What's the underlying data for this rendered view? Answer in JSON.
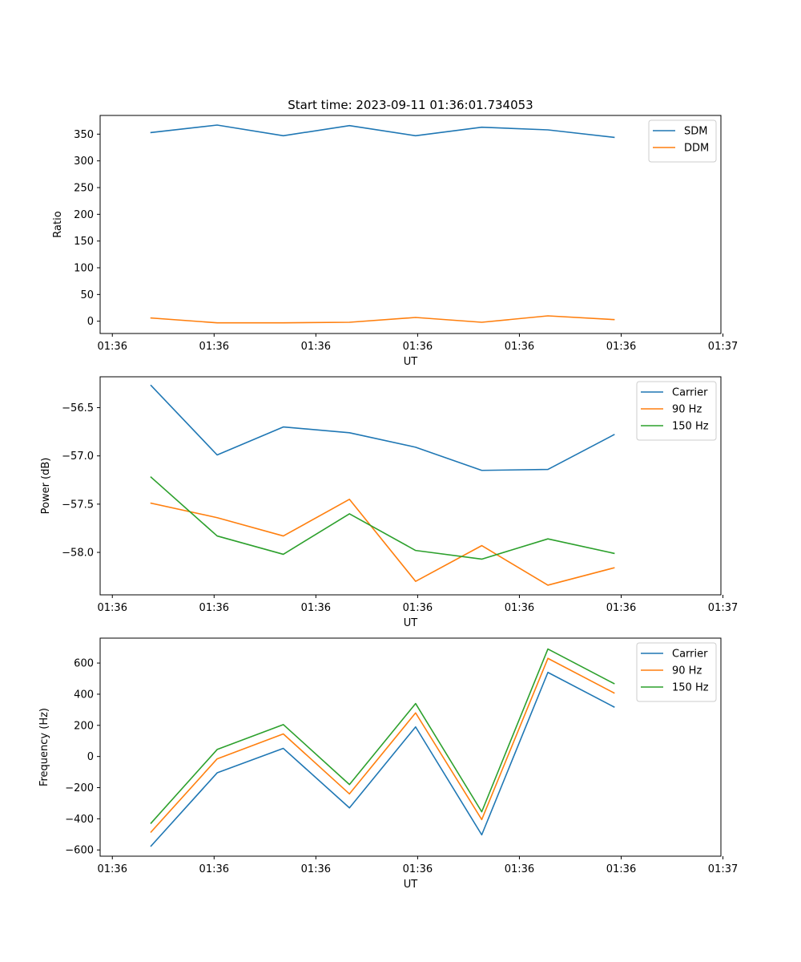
{
  "figure_title": "Start time: 2023-09-11 01:36:01.734053",
  "colors": {
    "blue": "#1f77b4",
    "orange": "#ff7f0e",
    "green": "#2ca02c"
  },
  "chart_data": [
    {
      "type": "line",
      "title": "Start time: 2023-09-11 01:36:01.734053",
      "xlabel": "UT",
      "ylabel": "Ratio",
      "xlim": [
        -0.12,
        5.98
      ],
      "x": [
        0.38,
        1.03,
        1.68,
        2.33,
        2.98,
        3.63,
        4.28,
        4.93
      ],
      "xticks": [
        0,
        1,
        2,
        3,
        4,
        5,
        6
      ],
      "xtick_labels": [
        "01:36",
        "01:36",
        "01:36",
        "01:36",
        "01:36",
        "01:36",
        "01:37"
      ],
      "ylim": [
        -23,
        385
      ],
      "yticks": [
        0,
        50,
        100,
        150,
        200,
        250,
        300,
        350
      ],
      "ytick_labels": [
        "0",
        "50",
        "100",
        "150",
        "200",
        "250",
        "300",
        "350"
      ],
      "legend_position": "top-right",
      "series": [
        {
          "name": "SDM",
          "color": "#1f77b4",
          "values": [
            353,
            367,
            347,
            366,
            347,
            363,
            358,
            344
          ]
        },
        {
          "name": "DDM",
          "color": "#ff7f0e",
          "values": [
            6,
            -3,
            -3,
            -2,
            7,
            -2,
            10,
            3
          ]
        }
      ]
    },
    {
      "type": "line",
      "title": "",
      "xlabel": "UT",
      "ylabel": "Power (dB)",
      "xlim": [
        -0.12,
        5.98
      ],
      "x": [
        0.38,
        1.03,
        1.68,
        2.33,
        2.98,
        3.63,
        4.28,
        4.93
      ],
      "xticks": [
        0,
        1,
        2,
        3,
        4,
        5,
        6
      ],
      "xtick_labels": [
        "01:36",
        "01:36",
        "01:36",
        "01:36",
        "01:36",
        "01:36",
        "01:37"
      ],
      "ylim": [
        -58.44,
        -56.18
      ],
      "yticks": [
        -58.0,
        -57.5,
        -57.0,
        -56.5
      ],
      "ytick_labels": [
        "−58.0",
        "−57.5",
        "−57.0",
        "−56.5"
      ],
      "legend_position": "top-right",
      "series": [
        {
          "name": "Carrier",
          "color": "#1f77b4",
          "values": [
            -56.27,
            -56.99,
            -56.7,
            -56.76,
            -56.91,
            -57.15,
            -57.14,
            -56.78
          ]
        },
        {
          "name": "90 Hz",
          "color": "#ff7f0e",
          "values": [
            -57.49,
            -57.64,
            -57.83,
            -57.45,
            -58.3,
            -57.93,
            -58.34,
            -58.16
          ]
        },
        {
          "name": "150 Hz",
          "color": "#2ca02c",
          "values": [
            -57.22,
            -57.83,
            -58.02,
            -57.6,
            -57.98,
            -58.07,
            -57.86,
            -58.01
          ]
        }
      ]
    },
    {
      "type": "line",
      "title": "",
      "xlabel": "UT",
      "ylabel": "Frequency (Hz)",
      "xlim": [
        -0.12,
        5.98
      ],
      "x": [
        0.38,
        1.03,
        1.68,
        2.33,
        2.98,
        3.63,
        4.28,
        4.93
      ],
      "xticks": [
        0,
        1,
        2,
        3,
        4,
        5,
        6
      ],
      "xtick_labels": [
        "01:36",
        "01:36",
        "01:36",
        "01:36",
        "01:36",
        "01:36",
        "01:37"
      ],
      "ylim": [
        -640,
        760
      ],
      "yticks": [
        -600,
        -400,
        -200,
        0,
        200,
        400,
        600
      ],
      "ytick_labels": [
        "−600",
        "−400",
        "−200",
        "0",
        "200",
        "400",
        "600"
      ],
      "legend_position": "top-right",
      "series": [
        {
          "name": "Carrier",
          "color": "#1f77b4",
          "values": [
            -575,
            -105,
            52,
            -330,
            190,
            -503,
            540,
            318
          ]
        },
        {
          "name": "90 Hz",
          "color": "#ff7f0e",
          "values": [
            -485,
            -15,
            145,
            -240,
            280,
            -405,
            630,
            408
          ]
        },
        {
          "name": "150 Hz",
          "color": "#2ca02c",
          "values": [
            -428,
            45,
            205,
            -180,
            340,
            -355,
            690,
            468
          ]
        }
      ]
    }
  ]
}
